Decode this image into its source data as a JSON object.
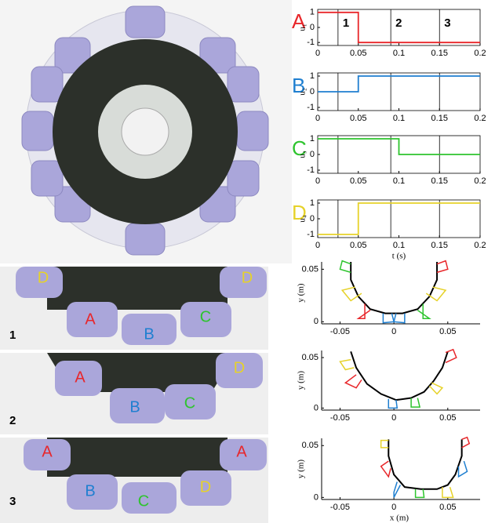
{
  "chart_data": [
    {
      "type": "line",
      "frame": "box",
      "label": "A",
      "label_color": "#e8262a",
      "ylabel": "u₁",
      "color": "#e8262a",
      "x": [
        0,
        0.05,
        0.05,
        0.2
      ],
      "values": [
        1,
        1,
        -1,
        -1
      ],
      "xlim": [
        0,
        0.2
      ],
      "ylim": [
        -1.2,
        1.2
      ],
      "xticks": [
        0,
        0.05,
        0.1,
        0.15,
        0.2
      ],
      "yticks": [
        -1,
        0,
        1
      ],
      "vlines": [
        0.025,
        0.09,
        0.15
      ],
      "vline_labels": [
        "1",
        "2",
        "3"
      ]
    },
    {
      "type": "line",
      "frame": "box",
      "label": "B",
      "label_color": "#1f7fd0",
      "ylabel": "u₂",
      "color": "#1f7fd0",
      "x": [
        0,
        0.05,
        0.05,
        0.2
      ],
      "values": [
        0,
        0,
        1,
        1
      ],
      "xlim": [
        0,
        0.2
      ],
      "ylim": [
        -1.2,
        1.2
      ],
      "xticks": [
        0,
        0.05,
        0.1,
        0.15,
        0.2
      ],
      "yticks": [
        -1,
        0,
        1
      ],
      "vlines": [
        0.025,
        0.09,
        0.15
      ]
    },
    {
      "type": "line",
      "frame": "box",
      "label": "C",
      "label_color": "#2ec42e",
      "ylabel": "u₃",
      "color": "#2ec42e",
      "x": [
        0,
        0.1,
        0.1,
        0.2
      ],
      "values": [
        1,
        1,
        0,
        0
      ],
      "xlim": [
        0,
        0.2
      ],
      "ylim": [
        -1.2,
        1.2
      ],
      "xticks": [
        0,
        0.05,
        0.1,
        0.15,
        0.2
      ],
      "yticks": [
        -1,
        0,
        1
      ],
      "vlines": [
        0.025,
        0.09,
        0.15
      ]
    },
    {
      "type": "line",
      "frame": "box",
      "label": "D",
      "label_color": "#e6d22a",
      "ylabel": "u₄",
      "xlabel": "t (s)",
      "color": "#e6d22a",
      "x": [
        0,
        0.05,
        0.05,
        0.2
      ],
      "values": [
        -1,
        -1,
        1,
        1
      ],
      "xlim": [
        0,
        0.2
      ],
      "ylim": [
        -1.2,
        1.2
      ],
      "xticks": [
        0,
        0.05,
        0.1,
        0.15,
        0.2
      ],
      "yticks": [
        -1,
        0,
        1
      ],
      "vlines": [
        0.025,
        0.09,
        0.15
      ]
    },
    {
      "type": "shape",
      "frame": "left-bottom",
      "ylabel": "y (m)",
      "xlim": [
        -0.07,
        0.08
      ],
      "ylim": [
        -0.002,
        0.057
      ],
      "xticks": [
        -0.05,
        0,
        0.05
      ],
      "yticks": [
        0,
        0.05
      ],
      "series": [
        {
          "color": "#000000",
          "x": [
            -0.04,
            -0.04,
            -0.033,
            -0.022,
            -0.008,
            0.008,
            0.022,
            0.033,
            0.04,
            0.04
          ],
          "values": [
            0.057,
            0.04,
            0.024,
            0.012,
            0.008,
            0.008,
            0.012,
            0.024,
            0.04,
            0.057
          ]
        },
        {
          "color": "#2ec42e",
          "x": [
            -0.04,
            -0.05,
            -0.048,
            -0.04
          ],
          "values": [
            0.047,
            0.05,
            0.058,
            0.055
          ]
        },
        {
          "color": "#e6d22a",
          "x": [
            -0.036,
            -0.048,
            -0.04,
            -0.03
          ],
          "values": [
            0.033,
            0.03,
            0.02,
            0.027
          ]
        },
        {
          "color": "#e8262a",
          "x": [
            -0.027,
            -0.027,
            -0.033,
            -0.022
          ],
          "values": [
            0.017,
            0.003,
            0.003,
            0.011
          ]
        },
        {
          "color": "#1f7fd0",
          "x": [
            -0.01,
            -0.01,
            0,
            -0.002
          ],
          "values": [
            0.008,
            -0.001,
            0,
            0.008
          ]
        },
        {
          "color": "#1f7fd0",
          "x": [
            0.01,
            0.01,
            0,
            0.002
          ],
          "values": [
            0.008,
            -0.001,
            0,
            0.008
          ]
        },
        {
          "color": "#2ec42e",
          "x": [
            0.027,
            0.027,
            0.033,
            0.022
          ],
          "values": [
            0.017,
            0.003,
            0.003,
            0.011
          ]
        },
        {
          "color": "#e6d22a",
          "x": [
            0.036,
            0.048,
            0.04,
            0.03
          ],
          "values": [
            0.033,
            0.03,
            0.02,
            0.027
          ]
        },
        {
          "color": "#e8262a",
          "x": [
            0.04,
            0.05,
            0.048,
            0.04
          ],
          "values": [
            0.047,
            0.05,
            0.058,
            0.055
          ]
        }
      ]
    },
    {
      "type": "shape",
      "frame": "left-bottom",
      "ylabel": "y (m)",
      "xlim": [
        -0.07,
        0.08
      ],
      "ylim": [
        -0.002,
        0.057
      ],
      "xticks": [
        -0.05,
        0,
        0.05
      ],
      "yticks": [
        0,
        0.05
      ],
      "series": [
        {
          "color": "#000000",
          "x": [
            -0.04,
            -0.035,
            -0.025,
            -0.012,
            0.002,
            0.016,
            0.028,
            0.037,
            0.045,
            0.05
          ],
          "values": [
            0.056,
            0.04,
            0.024,
            0.014,
            0.008,
            0.01,
            0.016,
            0.027,
            0.04,
            0.056
          ]
        },
        {
          "color": "#e6d22a",
          "x": [
            -0.04,
            -0.05,
            -0.045,
            -0.037
          ],
          "values": [
            0.048,
            0.046,
            0.038,
            0.04
          ]
        },
        {
          "color": "#e8262a",
          "x": [
            -0.035,
            -0.045,
            -0.035,
            -0.03
          ],
          "values": [
            0.033,
            0.025,
            0.02,
            0.028
          ]
        },
        {
          "color": "#1f7fd0",
          "x": [
            -0.005,
            -0.005,
            0.003,
            0.002
          ],
          "values": [
            0.009,
            0,
            0,
            0.008
          ]
        },
        {
          "color": "#2ec42e",
          "x": [
            0.016,
            0.016,
            0.024,
            0.022
          ],
          "values": [
            0.01,
            0.001,
            0.001,
            0.01
          ]
        },
        {
          "color": "#e6d22a",
          "x": [
            0.033,
            0.04,
            0.045,
            0.035
          ],
          "values": [
            0.022,
            0.014,
            0.02,
            0.025
          ]
        },
        {
          "color": "#e8262a",
          "x": [
            0.048,
            0.058,
            0.055,
            0.048
          ],
          "values": [
            0.045,
            0.05,
            0.058,
            0.055
          ]
        }
      ]
    },
    {
      "type": "shape",
      "frame": "left-bottom",
      "ylabel": "y (m)",
      "xlabel": "x (m)",
      "xlim": [
        -0.07,
        0.08
      ],
      "ylim": [
        -0.002,
        0.057
      ],
      "xticks": [
        -0.05,
        0,
        0.05
      ],
      "yticks": [
        0,
        0.05
      ],
      "series": [
        {
          "color": "#000000",
          "x": [
            -0.005,
            -0.005,
            0,
            0.01,
            0.025,
            0.04,
            0.05,
            0.057,
            0.063,
            0.063
          ],
          "values": [
            0.056,
            0.04,
            0.022,
            0.01,
            0.008,
            0.008,
            0.012,
            0.022,
            0.04,
            0.056
          ]
        },
        {
          "color": "#e6d22a",
          "x": [
            -0.005,
            -0.012,
            -0.012,
            -0.005
          ],
          "values": [
            0.048,
            0.048,
            0.055,
            0.055
          ]
        },
        {
          "color": "#e8262a",
          "x": [
            -0.005,
            -0.012,
            -0.005,
            -0.003
          ],
          "values": [
            0.035,
            0.03,
            0.02,
            0.028
          ]
        },
        {
          "color": "#1f7fd0",
          "x": [
            0.003,
            0,
            0,
            0.006
          ],
          "values": [
            0.015,
            0.005,
            0,
            0.012
          ]
        },
        {
          "color": "#2ec42e",
          "x": [
            0.02,
            0.02,
            0.028,
            0.027
          ],
          "values": [
            0.008,
            0,
            0,
            0.008
          ]
        },
        {
          "color": "#e6d22a",
          "x": [
            0.045,
            0.045,
            0.055,
            0.052
          ],
          "values": [
            0.01,
            0,
            0,
            0.01
          ]
        },
        {
          "color": "#1f7fd0",
          "x": [
            0.06,
            0.06,
            0.068,
            0.065
          ],
          "values": [
            0.03,
            0.02,
            0.025,
            0.035
          ]
        },
        {
          "color": "#e8262a",
          "x": [
            0.063,
            0.07,
            0.068,
            0.063
          ],
          "values": [
            0.048,
            0.052,
            0.058,
            0.056
          ]
        }
      ]
    }
  ],
  "photos": [
    {
      "number": "1",
      "labels": [
        {
          "text": "D",
          "color": "#e6d22a"
        },
        {
          "text": "D",
          "color": "#e6d22a"
        },
        {
          "text": "A",
          "color": "#e8262a"
        },
        {
          "text": "B",
          "color": "#1f7fd0"
        },
        {
          "text": "C",
          "color": "#2ec42e"
        }
      ]
    },
    {
      "number": "2",
      "labels": [
        {
          "text": "A",
          "color": "#e8262a"
        },
        {
          "text": "D",
          "color": "#e6d22a"
        },
        {
          "text": "B",
          "color": "#1f7fd0"
        },
        {
          "text": "C",
          "color": "#2ec42e"
        }
      ]
    },
    {
      "number": "3",
      "labels": [
        {
          "text": "A",
          "color": "#e8262a"
        },
        {
          "text": "A",
          "color": "#e8262a"
        },
        {
          "text": "B",
          "color": "#1f7fd0"
        },
        {
          "text": "C",
          "color": "#2ec42e"
        },
        {
          "text": "D",
          "color": "#e6d22a"
        }
      ]
    }
  ]
}
